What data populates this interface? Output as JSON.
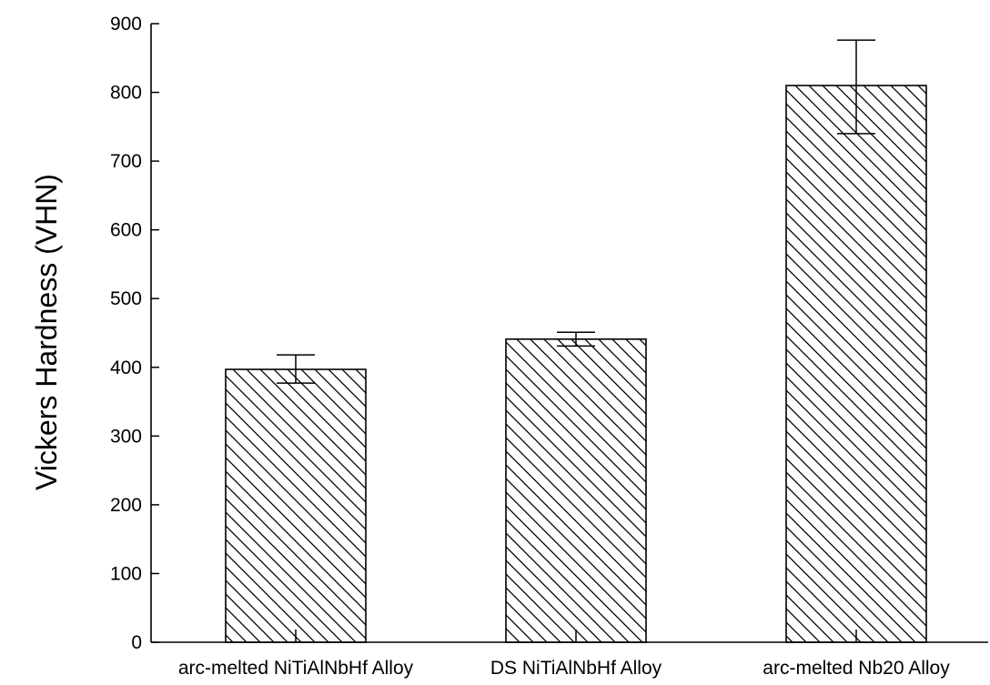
{
  "chart_data": {
    "type": "bar",
    "title": "",
    "xlabel": "",
    "ylabel": "Vickers Hardness (VHN)",
    "categories": [
      "arc-melted NiTiAlNbHf Alloy",
      "DS NiTiAlNbHf Alloy",
      "arc-melted Nb20 Alloy"
    ],
    "values": [
      397,
      441,
      810
    ],
    "error_low": [
      377,
      431,
      740
    ],
    "error_high": [
      418,
      451,
      876
    ],
    "ylim": [
      0,
      900
    ],
    "yticks": [
      0,
      100,
      200,
      300,
      400,
      500,
      600,
      700,
      800,
      900
    ],
    "bar_fill": "hatched-diagonal",
    "grid": false,
    "legend": "none"
  },
  "colors": {
    "ink": "#000000",
    "background": "#ffffff"
  }
}
